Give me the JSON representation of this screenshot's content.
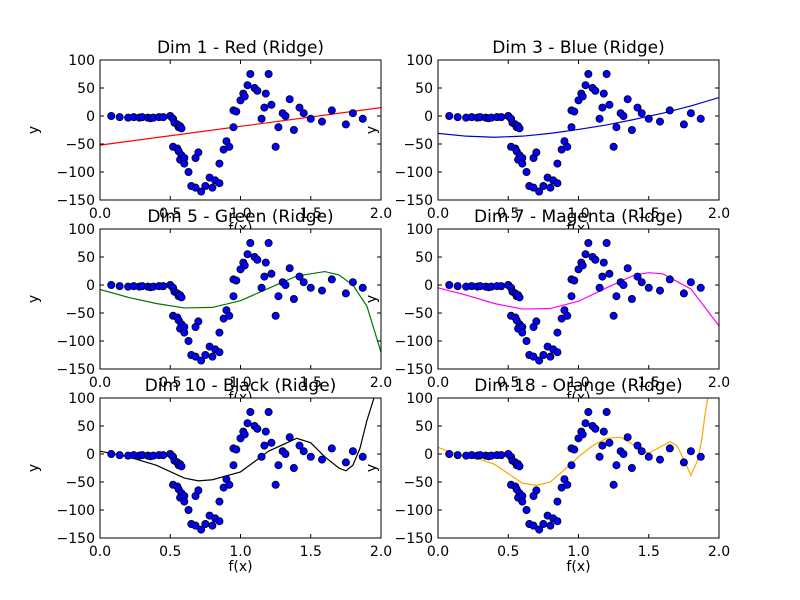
{
  "figure": {
    "background": "#ffffff"
  },
  "point_style": {
    "fill": "#0000ff",
    "stroke": "#000000"
  },
  "chart_data": [
    {
      "type": "scatter",
      "title": "Dim 1 - Red (Ridge)",
      "xlabel": "f(x)",
      "ylabel": "y",
      "xlim": [
        0.0,
        2.0
      ],
      "ylim": [
        -150,
        100
      ],
      "xticks": [
        "0.0",
        "0.5",
        "1.0",
        "1.5",
        "2.0"
      ],
      "yticks": [
        "100",
        "50",
        "0",
        "−50",
        "−100",
        "−150"
      ],
      "fit": {
        "color": "#ff0000",
        "x": [
          0.0,
          2.0
        ],
        "y": [
          -52,
          15
        ]
      }
    },
    {
      "type": "scatter",
      "title": "Dim 3 - Blue (Ridge)",
      "xlabel": "f(x)",
      "ylabel": "y",
      "xlim": [
        0.0,
        2.0
      ],
      "ylim": [
        -150,
        100
      ],
      "xticks": [
        "0.0",
        "0.5",
        "1.0",
        "1.5",
        "2.0"
      ],
      "yticks": [
        "100",
        "50",
        "0",
        "−50",
        "−100",
        "−150"
      ],
      "fit": {
        "color": "#0000cc",
        "x": [
          0.0,
          0.2,
          0.4,
          0.6,
          0.8,
          1.0,
          1.2,
          1.4,
          1.6,
          1.8,
          2.0
        ],
        "y": [
          -31,
          -36,
          -38,
          -36,
          -31,
          -24,
          -16,
          -6,
          5,
          18,
          33
        ]
      }
    },
    {
      "type": "scatter",
      "title": "Dim 5 - Green (Ridge)",
      "xlabel": "f(x)",
      "ylabel": "y",
      "xlim": [
        0.0,
        2.0
      ],
      "ylim": [
        -150,
        100
      ],
      "xticks": [
        "0.0",
        "0.5",
        "1.0",
        "1.5",
        "2.0"
      ],
      "yticks": [
        "100",
        "50",
        "0",
        "−50",
        "−100",
        "−150"
      ],
      "fit": {
        "color": "#007700",
        "x": [
          0.0,
          0.2,
          0.4,
          0.6,
          0.8,
          1.0,
          1.2,
          1.4,
          1.6,
          1.7,
          1.8,
          1.9,
          2.0
        ],
        "y": [
          -8,
          -22,
          -33,
          -41,
          -40,
          -28,
          -6,
          16,
          24,
          18,
          0,
          -38,
          -120
        ]
      }
    },
    {
      "type": "scatter",
      "title": "Dim 7 - Magenta (Ridge)",
      "xlabel": "f(x)",
      "ylabel": "y",
      "xlim": [
        0.0,
        2.0
      ],
      "ylim": [
        -150,
        100
      ],
      "xticks": [
        "0.0",
        "0.5",
        "1.0",
        "1.5",
        "2.0"
      ],
      "yticks": [
        "100",
        "50",
        "0",
        "−50",
        "−100",
        "−150"
      ],
      "fit": {
        "color": "#ff00ff",
        "x": [
          0.0,
          0.2,
          0.4,
          0.6,
          0.8,
          1.0,
          1.2,
          1.4,
          1.5,
          1.6,
          1.8,
          2.0
        ],
        "y": [
          -5,
          -18,
          -33,
          -43,
          -42,
          -29,
          -5,
          18,
          22,
          20,
          -7,
          -73
        ]
      }
    },
    {
      "type": "scatter",
      "title": "Dim 10 - Black (Ridge)",
      "xlabel": "f(x)",
      "ylabel": "y",
      "xlim": [
        0.0,
        2.0
      ],
      "ylim": [
        -150,
        100
      ],
      "xticks": [
        "0.0",
        "0.5",
        "1.0",
        "1.5",
        "2.0"
      ],
      "yticks": [
        "100",
        "50",
        "0",
        "−50",
        "−100",
        "−150"
      ],
      "fit": {
        "color": "#000000",
        "x": [
          0.0,
          0.2,
          0.4,
          0.6,
          0.7,
          0.8,
          1.0,
          1.2,
          1.4,
          1.5,
          1.6,
          1.7,
          1.75,
          1.8,
          1.85,
          1.9,
          1.95
        ],
        "y": [
          5,
          -5,
          -20,
          -43,
          -48,
          -46,
          -32,
          5,
          28,
          20,
          -5,
          -25,
          -30,
          -20,
          10,
          60,
          100
        ]
      }
    },
    {
      "type": "scatter",
      "title": "Dim 18 - Orange (Ridge)",
      "xlabel": "f(x)",
      "ylabel": "y",
      "xlim": [
        0.0,
        2.0
      ],
      "ylim": [
        -150,
        100
      ],
      "xticks": [
        "0.0",
        "0.5",
        "1.0",
        "1.5",
        "2.0"
      ],
      "yticks": [
        "100",
        "50",
        "0",
        "−50",
        "−100",
        "−150"
      ],
      "fit": {
        "color": "#ffa500",
        "x": [
          0.0,
          0.1,
          0.2,
          0.3,
          0.4,
          0.5,
          0.6,
          0.7,
          0.8,
          0.9,
          1.0,
          1.1,
          1.2,
          1.3,
          1.4,
          1.45,
          1.5,
          1.55,
          1.6,
          1.65,
          1.7,
          1.75,
          1.8,
          1.85,
          1.88,
          1.9,
          1.92
        ],
        "y": [
          12,
          2,
          -5,
          -10,
          -18,
          -35,
          -52,
          -56,
          -50,
          -28,
          -5,
          15,
          28,
          30,
          15,
          5,
          2,
          8,
          15,
          22,
          15,
          -10,
          -38,
          -10,
          30,
          70,
          100
        ]
      }
    }
  ],
  "scatter_points": {
    "x": [
      0.08,
      0.14,
      0.2,
      0.24,
      0.28,
      0.3,
      0.34,
      0.36,
      0.38,
      0.42,
      0.45,
      0.5,
      0.52,
      0.53,
      0.55,
      0.56,
      0.57,
      0.58,
      0.52,
      0.55,
      0.56,
      0.58,
      0.57,
      0.6,
      0.6,
      0.63,
      0.65,
      0.68,
      0.68,
      0.7,
      0.72,
      0.75,
      0.78,
      0.8,
      0.82,
      0.85,
      0.85,
      0.88,
      0.9,
      0.92,
      0.95,
      0.95,
      0.97,
      1.0,
      1.02,
      1.03,
      1.05,
      1.07,
      1.1,
      1.12,
      1.15,
      1.17,
      1.18,
      1.2,
      1.22,
      1.25,
      1.27,
      1.3,
      1.32,
      1.35,
      1.38,
      1.42,
      1.45,
      1.5,
      1.58,
      1.65,
      1.75,
      1.8,
      1.87
    ],
    "y": [
      0,
      -2,
      -3,
      -2,
      -3,
      -2,
      -3,
      -4,
      -3,
      -2,
      -2,
      0,
      -5,
      -12,
      -15,
      -20,
      -18,
      -22,
      -55,
      -58,
      -63,
      -70,
      -78,
      -75,
      -85,
      -100,
      -125,
      -75,
      -128,
      -65,
      -135,
      -125,
      -110,
      -128,
      -115,
      -85,
      -120,
      -60,
      -45,
      -55,
      -20,
      10,
      8,
      28,
      40,
      35,
      55,
      75,
      50,
      45,
      -5,
      15,
      40,
      75,
      20,
      -55,
      -20,
      5,
      0,
      30,
      -25,
      15,
      5,
      -5,
      -10,
      10,
      -15,
      5,
      -5
    ]
  }
}
